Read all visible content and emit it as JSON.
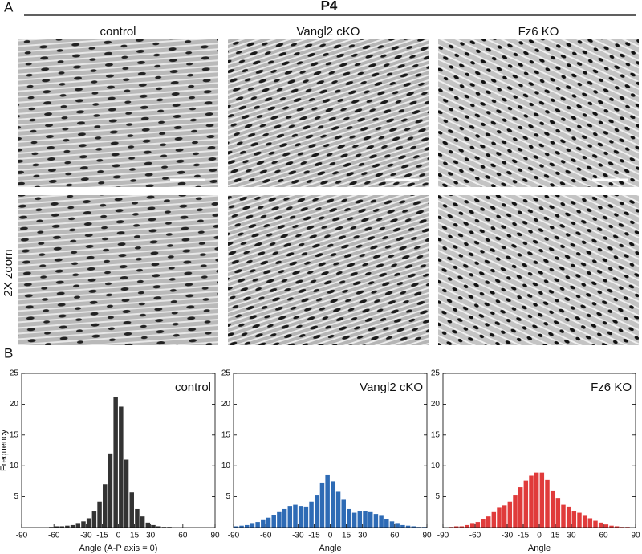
{
  "figure": {
    "panel_a_label": "A",
    "title": "P4",
    "columns": [
      "control",
      "Vangl2 cKO",
      "Fz6 KO"
    ],
    "row_label": "2X zoom",
    "panel_b_label": "B"
  },
  "chart_data": [
    {
      "type": "histogram",
      "title": "control",
      "xlabel": "Angle (A-P axis = 0)",
      "ylabel": "Frequency",
      "color": "#333333",
      "bins": [
        -90,
        -85,
        -80,
        -75,
        -70,
        -65,
        -60,
        -55,
        -50,
        -45,
        -40,
        -35,
        -30,
        -25,
        -20,
        -15,
        -10,
        -5,
        0,
        5,
        10,
        15,
        20,
        25,
        30,
        35,
        40,
        45,
        50,
        55,
        60,
        65,
        70,
        75,
        80,
        85,
        90
      ],
      "counts": [
        0,
        0,
        0,
        0,
        0,
        0.1,
        0.2,
        0.2,
        0.3,
        0.4,
        0.6,
        1.0,
        1.5,
        2.6,
        4.2,
        7.0,
        12.0,
        21.2,
        19.6,
        11.0,
        5.7,
        3.0,
        1.8,
        0.8,
        0.4,
        0.2,
        0.1,
        0.1,
        0,
        0,
        0,
        0,
        0,
        0,
        0,
        0
      ],
      "xlim": [
        -90,
        90
      ],
      "ylim": [
        0,
        25
      ],
      "xticks": [
        -90,
        -60,
        -30,
        -15,
        0,
        15,
        30,
        60,
        90
      ],
      "yticks": [
        5,
        10,
        15,
        20,
        25
      ]
    },
    {
      "type": "histogram",
      "title": "Vangl2 cKO",
      "xlabel": "Angle",
      "color": "#2e6bb5",
      "bins": [
        -90,
        -85,
        -80,
        -75,
        -70,
        -65,
        -60,
        -55,
        -50,
        -45,
        -40,
        -35,
        -30,
        -25,
        -20,
        -15,
        -10,
        -5,
        0,
        5,
        10,
        15,
        20,
        25,
        30,
        35,
        40,
        45,
        50,
        55,
        60,
        65,
        70,
        75,
        80,
        85,
        90
      ],
      "counts": [
        0.2,
        0.3,
        0.4,
        0.6,
        0.9,
        1.2,
        1.6,
        2.0,
        2.5,
        3.0,
        3.5,
        3.7,
        3.5,
        3.4,
        4.2,
        5.2,
        7.3,
        8.6,
        7.5,
        5.8,
        4.5,
        3.0,
        2.4,
        2.6,
        2.7,
        2.5,
        2.2,
        1.9,
        1.4,
        1.0,
        0.6,
        0.4,
        0.3,
        0.2,
        0.1,
        0.1
      ],
      "xlim": [
        -90,
        90
      ],
      "ylim": [
        0,
        25
      ],
      "xticks": [
        -90,
        -60,
        -30,
        -15,
        0,
        15,
        30,
        60,
        90
      ],
      "yticks": [
        5,
        10,
        15,
        20,
        25
      ]
    },
    {
      "type": "histogram",
      "title": "Fz6 KO",
      "xlabel": "Angle",
      "color": "#e03b3b",
      "bins": [
        -90,
        -85,
        -80,
        -75,
        -70,
        -65,
        -60,
        -55,
        -50,
        -45,
        -40,
        -35,
        -30,
        -25,
        -20,
        -15,
        -10,
        -5,
        0,
        5,
        10,
        15,
        20,
        25,
        30,
        35,
        40,
        45,
        50,
        55,
        60,
        65,
        70,
        75,
        80,
        85,
        90
      ],
      "counts": [
        0,
        0.1,
        0.2,
        0.2,
        0.4,
        0.6,
        0.9,
        1.3,
        1.8,
        2.5,
        3.2,
        3.6,
        4.2,
        5.2,
        6.5,
        7.6,
        8.4,
        8.9,
        8.9,
        7.7,
        6.0,
        4.8,
        3.7,
        3.4,
        2.6,
        2.4,
        1.9,
        1.5,
        1.1,
        0.8,
        0.5,
        0.3,
        0.2,
        0.1,
        0.1,
        0
      ],
      "xlim": [
        -90,
        90
      ],
      "ylim": [
        0,
        25
      ],
      "xticks": [
        -90,
        -60,
        -30,
        -15,
        0,
        15,
        30,
        60,
        90
      ],
      "yticks": [
        5,
        10,
        15,
        20,
        25
      ]
    }
  ]
}
